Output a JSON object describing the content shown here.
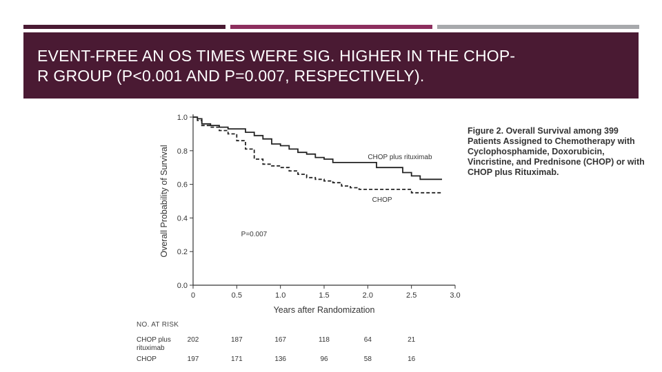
{
  "slide": {
    "title": "EVENT-FREE AN OS  TIMES WERE SIG. HIGHER IN THE CHOP-\nR GROUP (P<0.001 AND P=0.007, RESPECTIVELY).",
    "colors": {
      "title_bg": "#4a1a33",
      "accent_1": "#4a1a33",
      "accent_2": "#8d2f5e",
      "accent_3": "#a7a9ac"
    }
  },
  "figure": {
    "caption": "Figure 2. Overall Survival among 399 Patients Assigned to Chemotherapy with Cyclophosphamide, Doxorubicin, Vincristine, and Prednisone (CHOP) or with CHOP plus Rituximab."
  },
  "chart_data": {
    "type": "line",
    "title": "",
    "xlabel": "Years after Randomization",
    "ylabel": "Overall Probability of Survival",
    "xlim": [
      0,
      3.0
    ],
    "ylim": [
      0,
      1.0
    ],
    "xticks": [
      "0",
      "0.5",
      "1.0",
      "1.5",
      "2.0",
      "2.5",
      "3.0"
    ],
    "yticks": [
      "0.0",
      "0.2",
      "0.4",
      "0.6",
      "0.8",
      "1.0"
    ],
    "annotation": "P=0.007",
    "grid": false,
    "series": [
      {
        "name": "CHOP plus rituximab",
        "style": "solid",
        "color": "#222222",
        "x": [
          0,
          0.05,
          0.1,
          0.2,
          0.3,
          0.4,
          0.5,
          0.6,
          0.7,
          0.8,
          0.9,
          1.0,
          1.1,
          1.2,
          1.3,
          1.4,
          1.5,
          1.6,
          1.7,
          1.8,
          1.9,
          2.0,
          2.1,
          2.2,
          2.3,
          2.4,
          2.5,
          2.6,
          2.7,
          2.85
        ],
        "y": [
          1.0,
          0.99,
          0.96,
          0.95,
          0.94,
          0.93,
          0.93,
          0.91,
          0.89,
          0.87,
          0.84,
          0.83,
          0.81,
          0.79,
          0.78,
          0.76,
          0.75,
          0.73,
          0.73,
          0.73,
          0.73,
          0.73,
          0.7,
          0.7,
          0.7,
          0.67,
          0.65,
          0.63,
          0.63,
          0.63
        ]
      },
      {
        "name": "CHOP",
        "style": "dashed",
        "color": "#222222",
        "x": [
          0,
          0.05,
          0.1,
          0.2,
          0.3,
          0.4,
          0.5,
          0.6,
          0.7,
          0.8,
          0.9,
          1.0,
          1.1,
          1.2,
          1.3,
          1.4,
          1.5,
          1.6,
          1.7,
          1.8,
          1.9,
          2.0,
          2.1,
          2.2,
          2.3,
          2.4,
          2.5,
          2.6,
          2.7,
          2.85
        ],
        "y": [
          1.0,
          0.98,
          0.95,
          0.94,
          0.92,
          0.9,
          0.86,
          0.81,
          0.75,
          0.72,
          0.71,
          0.7,
          0.68,
          0.66,
          0.64,
          0.63,
          0.62,
          0.61,
          0.59,
          0.58,
          0.57,
          0.57,
          0.57,
          0.57,
          0.57,
          0.57,
          0.55,
          0.55,
          0.55,
          0.55
        ]
      }
    ],
    "at_risk": {
      "header": "NO. AT RISK",
      "times": [
        0,
        0.5,
        1.0,
        1.5,
        2.0,
        2.5
      ],
      "rows": [
        {
          "label": "CHOP plus\n  rituximab",
          "values": [
            202,
            187,
            167,
            118,
            64,
            21
          ]
        },
        {
          "label": "CHOP",
          "values": [
            197,
            171,
            136,
            96,
            58,
            16
          ]
        }
      ]
    }
  }
}
